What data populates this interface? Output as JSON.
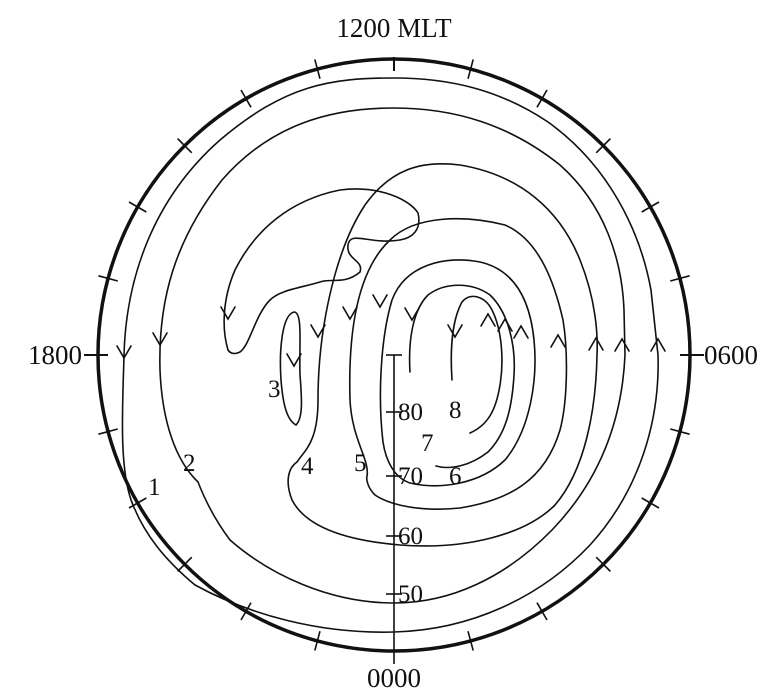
{
  "mlt_labels": {
    "noon": "1200 MLT",
    "dusk": "1800",
    "dawn": "0600",
    "midnight": "0000"
  },
  "latitude_labels": [
    "80",
    "70",
    "60",
    "50"
  ],
  "contour_labels": [
    "1",
    "2",
    "3",
    "4",
    "5",
    "6",
    "7",
    "8"
  ],
  "colors": {
    "line": "#111111",
    "background": "#ffffff"
  }
}
